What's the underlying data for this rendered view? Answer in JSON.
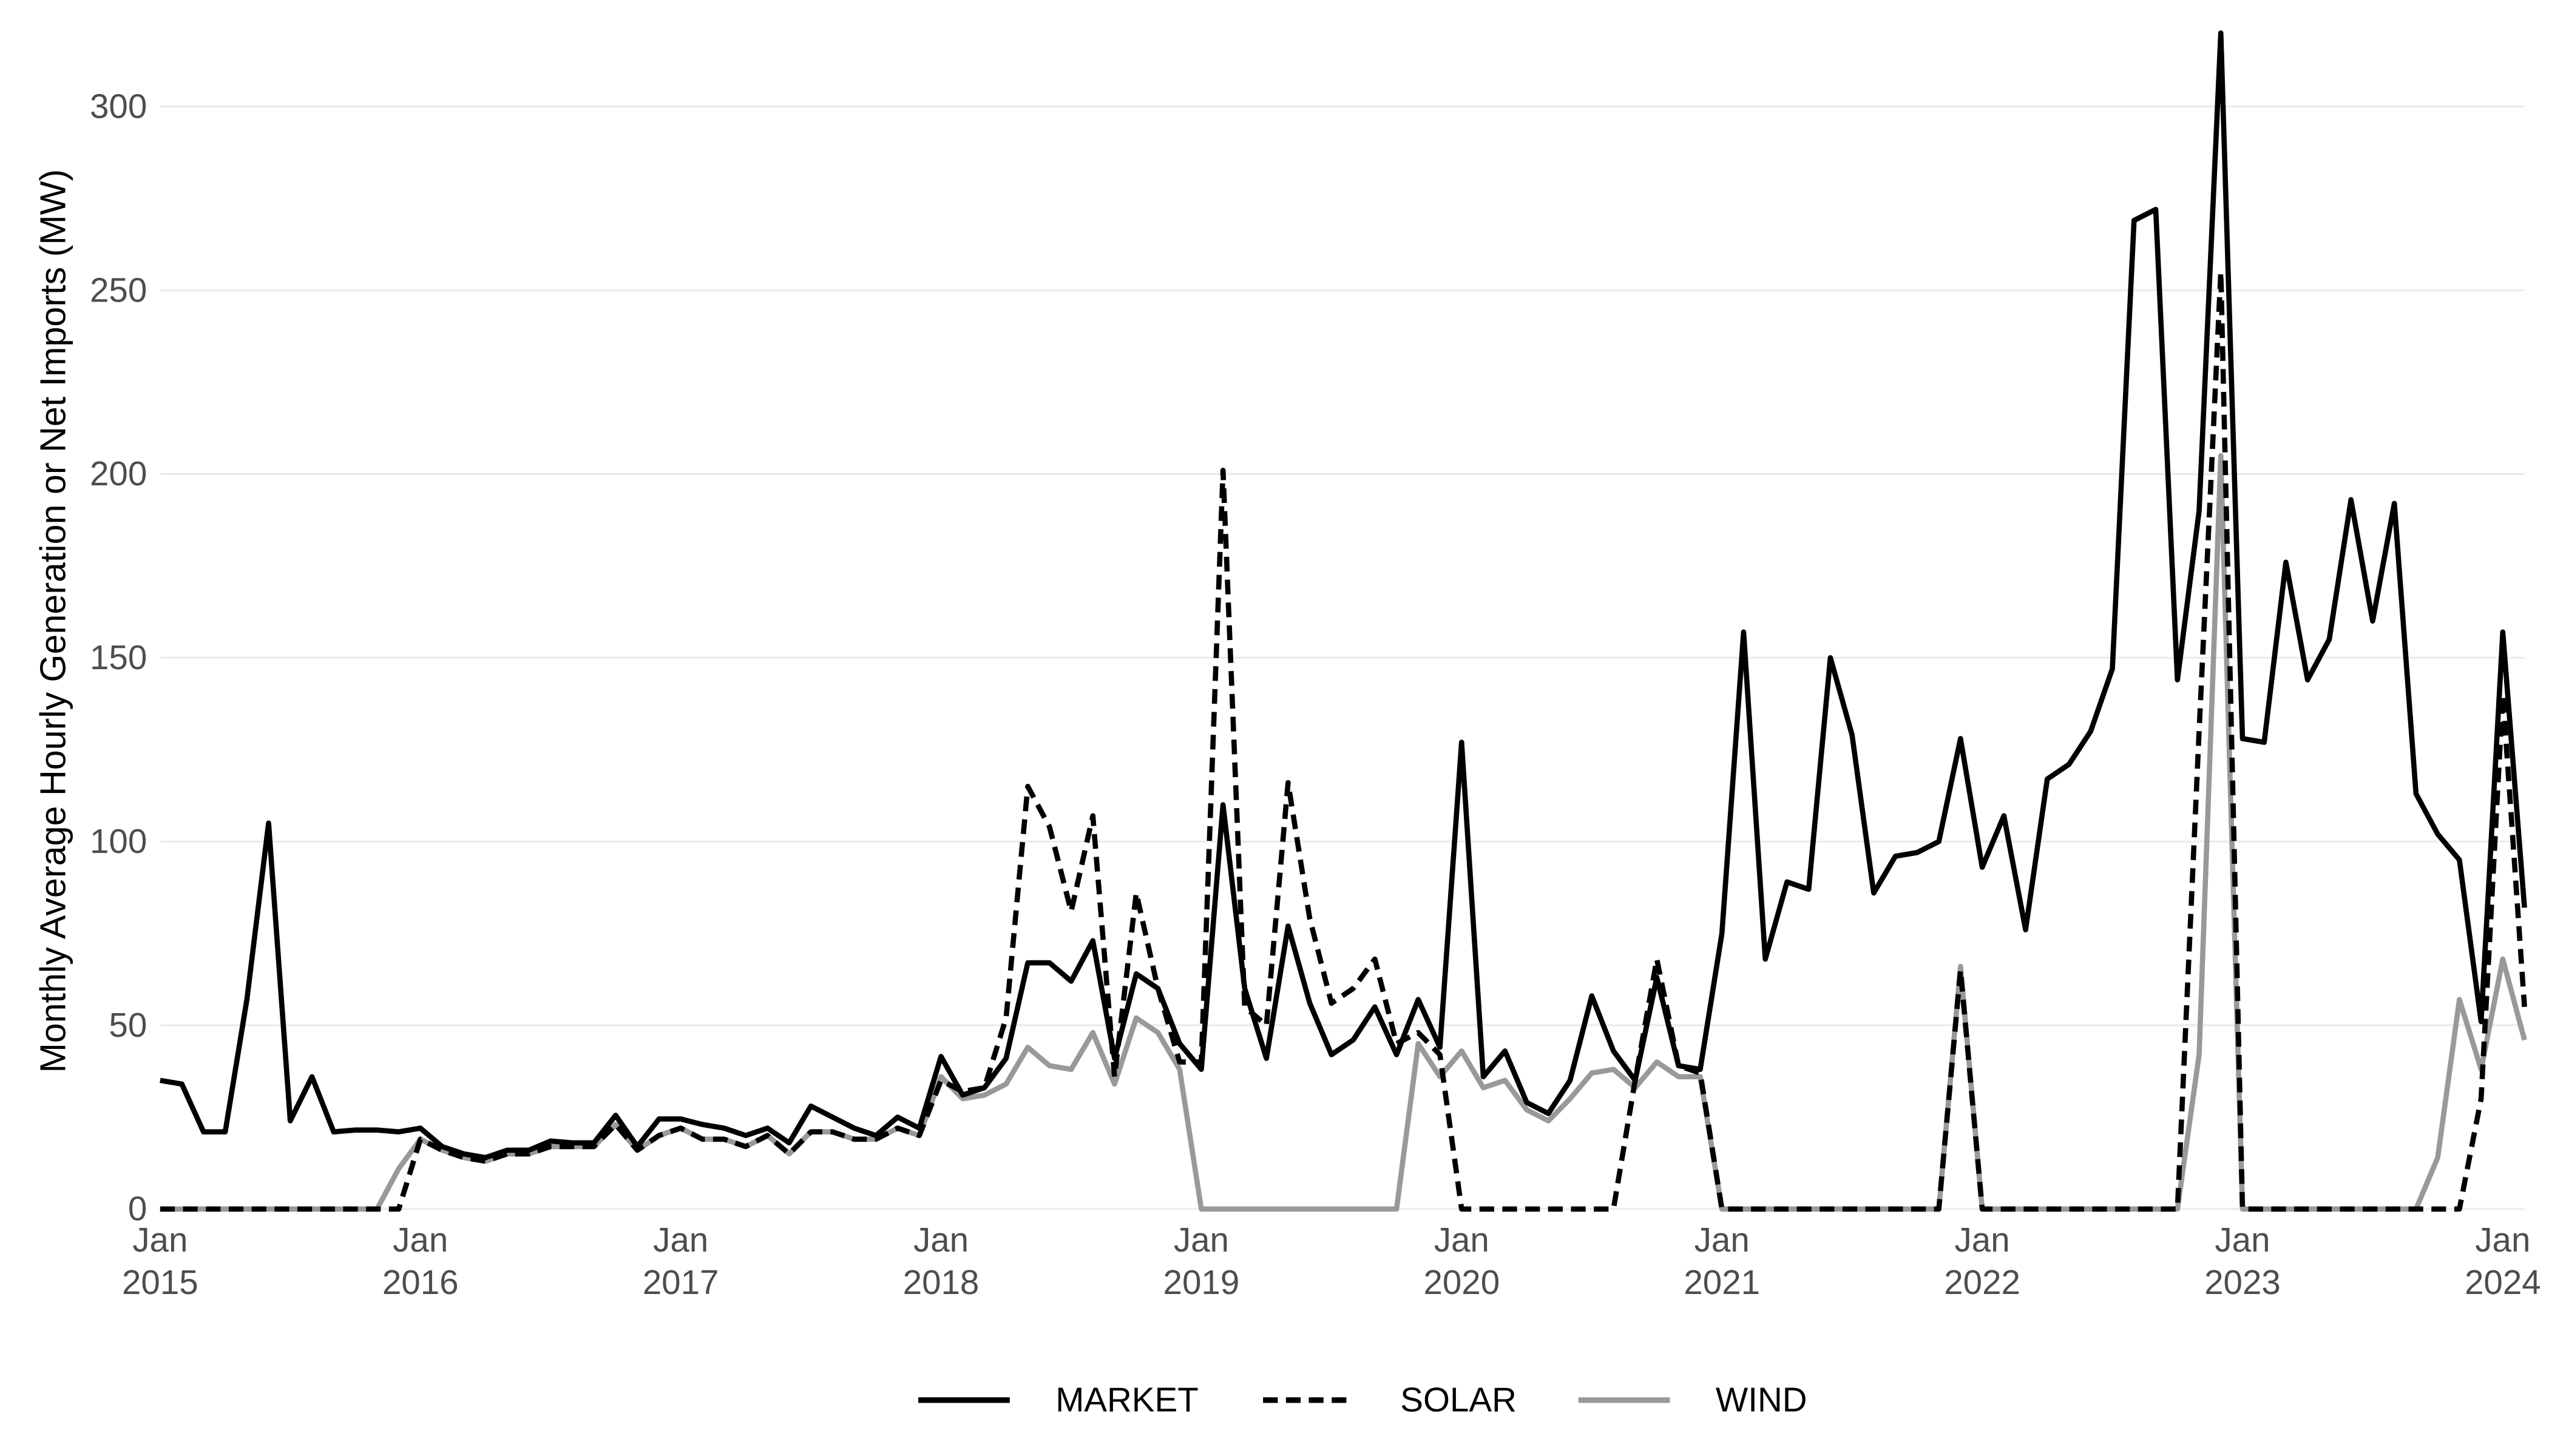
{
  "chart_data": {
    "type": "line",
    "ylabel": "Monthly Average Hourly Generation or Net Imports (MW)",
    "x": [
      "2015-01",
      "2015-02",
      "2015-03",
      "2015-04",
      "2015-05",
      "2015-06",
      "2015-07",
      "2015-08",
      "2015-09",
      "2015-10",
      "2015-11",
      "2015-12",
      "2016-01",
      "2016-02",
      "2016-03",
      "2016-04",
      "2016-05",
      "2016-06",
      "2016-07",
      "2016-08",
      "2016-09",
      "2016-10",
      "2016-11",
      "2016-12",
      "2017-01",
      "2017-02",
      "2017-03",
      "2017-04",
      "2017-05",
      "2017-06",
      "2017-07",
      "2017-08",
      "2017-09",
      "2017-10",
      "2017-11",
      "2017-12",
      "2018-01",
      "2018-02",
      "2018-03",
      "2018-04",
      "2018-05",
      "2018-06",
      "2018-07",
      "2018-08",
      "2018-09",
      "2018-10",
      "2018-11",
      "2018-12",
      "2019-01",
      "2019-02",
      "2019-03",
      "2019-04",
      "2019-05",
      "2019-06",
      "2019-07",
      "2019-08",
      "2019-09",
      "2019-10",
      "2019-11",
      "2019-12",
      "2020-01",
      "2020-02",
      "2020-03",
      "2020-04",
      "2020-05",
      "2020-06",
      "2020-07",
      "2020-08",
      "2020-09",
      "2020-10",
      "2020-11",
      "2020-12",
      "2021-01",
      "2021-02",
      "2021-03",
      "2021-04",
      "2021-05",
      "2021-06",
      "2021-07",
      "2021-08",
      "2021-09",
      "2021-10",
      "2021-11",
      "2021-12",
      "2022-01",
      "2022-02",
      "2022-03",
      "2022-04",
      "2022-05",
      "2022-06",
      "2022-07",
      "2022-08",
      "2022-09",
      "2022-10",
      "2022-11",
      "2022-12",
      "2023-01",
      "2023-02",
      "2023-03",
      "2023-04",
      "2023-05",
      "2023-06",
      "2023-07",
      "2023-08",
      "2023-09",
      "2023-10",
      "2023-11",
      "2023-12",
      "2024-01",
      "2024-02"
    ],
    "series": [
      {
        "name": "MARKET",
        "color": "#000000",
        "dash": "solid",
        "values": [
          35,
          34,
          21,
          21,
          57,
          105,
          24,
          36,
          21,
          21.5,
          21.5,
          21,
          22,
          17,
          15,
          14,
          16,
          16,
          18.5,
          18,
          18,
          25.5,
          17,
          24.5,
          24.5,
          23,
          22,
          20,
          22,
          18,
          28,
          25,
          22,
          20,
          25,
          22,
          41.5,
          31,
          33,
          41,
          67,
          67,
          62,
          73,
          41,
          64,
          60,
          45,
          38,
          110,
          60,
          41,
          77,
          56,
          42,
          46,
          55,
          42,
          57,
          44,
          127,
          36,
          43,
          29,
          26,
          35,
          58,
          43,
          35,
          63,
          39,
          38,
          75,
          157,
          68,
          89,
          87,
          150,
          129,
          86,
          96,
          97,
          100,
          128,
          93,
          107,
          76,
          117,
          121,
          130,
          147,
          269,
          272,
          144,
          190,
          320,
          128,
          127,
          176,
          144,
          155,
          193,
          160,
          192,
          113,
          102,
          95,
          51,
          157,
          82
        ]
      },
      {
        "name": "SOLAR",
        "color": "#000000",
        "dash": "dashed",
        "values": [
          0,
          0,
          0,
          0,
          0,
          0,
          0,
          0,
          0,
          0,
          0,
          0,
          19,
          16,
          14,
          13,
          15,
          15,
          17,
          17,
          17,
          23,
          16,
          20,
          22,
          19,
          19,
          17,
          20,
          15,
          21,
          21,
          19,
          19,
          22,
          20,
          35,
          32,
          33,
          52,
          115,
          104,
          81,
          107,
          36,
          86,
          60,
          40,
          40,
          201,
          55,
          50,
          116,
          79,
          56,
          60,
          68,
          45,
          48,
          42,
          0,
          0,
          0,
          0,
          0,
          0,
          0,
          0,
          35,
          68,
          39,
          37,
          0,
          0,
          0,
          0,
          0,
          0,
          0,
          0,
          0,
          0,
          0,
          65,
          0,
          0,
          0,
          0,
          0,
          0,
          0,
          0,
          0,
          0,
          130,
          255,
          0,
          0,
          0,
          0,
          0,
          0,
          0,
          0,
          0,
          0,
          0,
          30,
          140,
          55
        ]
      },
      {
        "name": "WIND",
        "color": "#999999",
        "dash": "solid",
        "values": [
          0,
          0,
          0,
          0,
          0,
          0,
          0,
          0,
          0,
          0,
          0,
          11,
          19,
          16,
          14,
          13,
          15,
          15,
          17,
          17,
          17,
          23,
          16,
          20,
          22,
          19,
          19,
          17,
          20,
          15,
          21,
          21,
          19,
          19,
          22,
          20,
          36,
          30,
          31,
          34,
          44,
          39,
          38,
          48,
          34,
          52,
          48,
          38,
          0,
          0,
          0,
          0,
          0,
          0,
          0,
          0,
          0,
          0,
          45,
          36,
          43,
          33,
          35,
          27,
          24,
          30,
          37,
          38,
          33,
          40,
          36,
          36,
          0,
          0,
          0,
          0,
          0,
          0,
          0,
          0,
          0,
          0,
          0,
          66,
          0,
          0,
          0,
          0,
          0,
          0,
          0,
          0,
          0,
          0,
          42,
          205,
          0,
          0,
          0,
          0,
          0,
          0,
          0,
          0,
          0,
          14,
          57,
          38,
          68,
          46
        ]
      }
    ],
    "ylim": [
      0,
      320
    ],
    "yticks": [
      0,
      50,
      100,
      150,
      200,
      250,
      300
    ],
    "xticks": [
      {
        "value": "2015-01",
        "label": "Jan 2015"
      },
      {
        "value": "2016-01",
        "label": "Jan 2016"
      },
      {
        "value": "2017-01",
        "label": "Jan 2017"
      },
      {
        "value": "2018-01",
        "label": "Jan 2018"
      },
      {
        "value": "2019-01",
        "label": "Jan 2019"
      },
      {
        "value": "2020-01",
        "label": "Jan 2020"
      },
      {
        "value": "2021-01",
        "label": "Jan 2021"
      },
      {
        "value": "2022-01",
        "label": "Jan 2022"
      },
      {
        "value": "2023-01",
        "label": "Jan 2023"
      },
      {
        "value": "2024-01",
        "label": "Jan 2024"
      }
    ],
    "grid": true,
    "legend": "bottom"
  }
}
